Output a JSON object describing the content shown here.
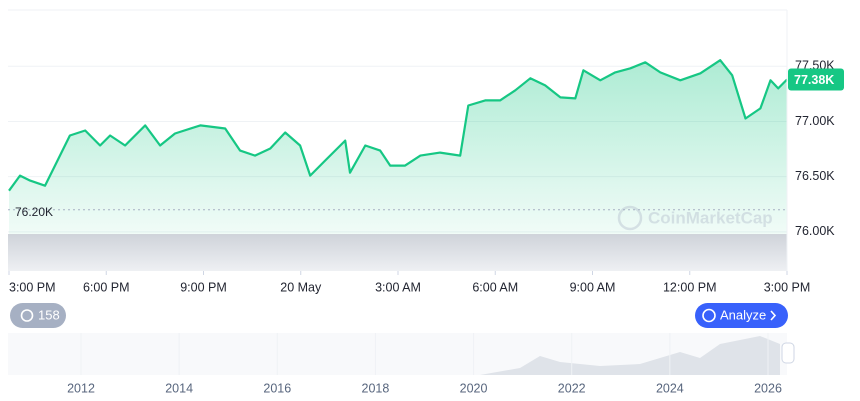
{
  "chart_data": {
    "type": "line",
    "color": "#16c784",
    "x": [
      0,
      0.34,
      0.65,
      1.11,
      1.42,
      1.88,
      2.35,
      2.81,
      3.12,
      3.58,
      4.2,
      4.66,
      5.12,
      5.9,
      6.67,
      7.13,
      7.59,
      8.06,
      8.52,
      8.98,
      9.29,
      9.75,
      10.37,
      10.52,
      10.99,
      11.45,
      11.76,
      12.22,
      12.69,
      13.3,
      13.92,
      14.17,
      14.69,
      15.15,
      15.62,
      16.08,
      16.54,
      17.01,
      17.47,
      17.72,
      18.24,
      18.7,
      19.17,
      19.63,
      20.09,
      20.71,
      21.33,
      21.94,
      22.31,
      22.72,
      23.18,
      23.49,
      23.73,
      24
    ],
    "values": [
      76373,
      76509,
      76464,
      76418,
      76600,
      76873,
      76918,
      76782,
      76873,
      76782,
      76964,
      76782,
      76891,
      76964,
      76936,
      76736,
      76691,
      76755,
      76900,
      76782,
      76509,
      76645,
      76827,
      76536,
      76782,
      76736,
      76600,
      76600,
      76691,
      76718,
      76691,
      77145,
      77191,
      77191,
      77282,
      77391,
      77327,
      77218,
      77209,
      77464,
      77373,
      77445,
      77482,
      77536,
      77445,
      77373,
      77436,
      77555,
      77418,
      77027,
      77118,
      77373,
      77300,
      77380
    ],
    "xlim": [
      0,
      24
    ],
    "xticks": [
      {
        "value": 0,
        "label": "3:00 PM"
      },
      {
        "value": 3,
        "label": "6:00 PM"
      },
      {
        "value": 6,
        "label": "9:00 PM"
      },
      {
        "value": 9,
        "label": "20 May"
      },
      {
        "value": 12,
        "label": "3:00 AM"
      },
      {
        "value": 15,
        "label": "6:00 AM"
      },
      {
        "value": 18,
        "label": "9:00 AM"
      },
      {
        "value": 21,
        "label": "12:00 PM"
      },
      {
        "value": 24,
        "label": "3:00 PM"
      }
    ],
    "ylim": [
      75645,
      78010
    ],
    "yticks": [
      {
        "value": 76000,
        "label": "76.00K"
      },
      {
        "value": 76500,
        "label": "76.50K"
      },
      {
        "value": 77000,
        "label": "77.00K"
      },
      {
        "value": 77500,
        "label": "77.50K"
      }
    ],
    "grid": true,
    "low_marker": {
      "value": 76200,
      "label": "76.20K"
    },
    "current_price": {
      "value": 77380,
      "label": "77.38K"
    }
  },
  "ui": {
    "watermark": "CoinMarketCap",
    "history_count": 158,
    "analyze": "Analyze",
    "navigator_years": [
      "2012",
      "2014",
      "2016",
      "2018",
      "2020",
      "2022",
      "2024",
      "2026"
    ]
  }
}
